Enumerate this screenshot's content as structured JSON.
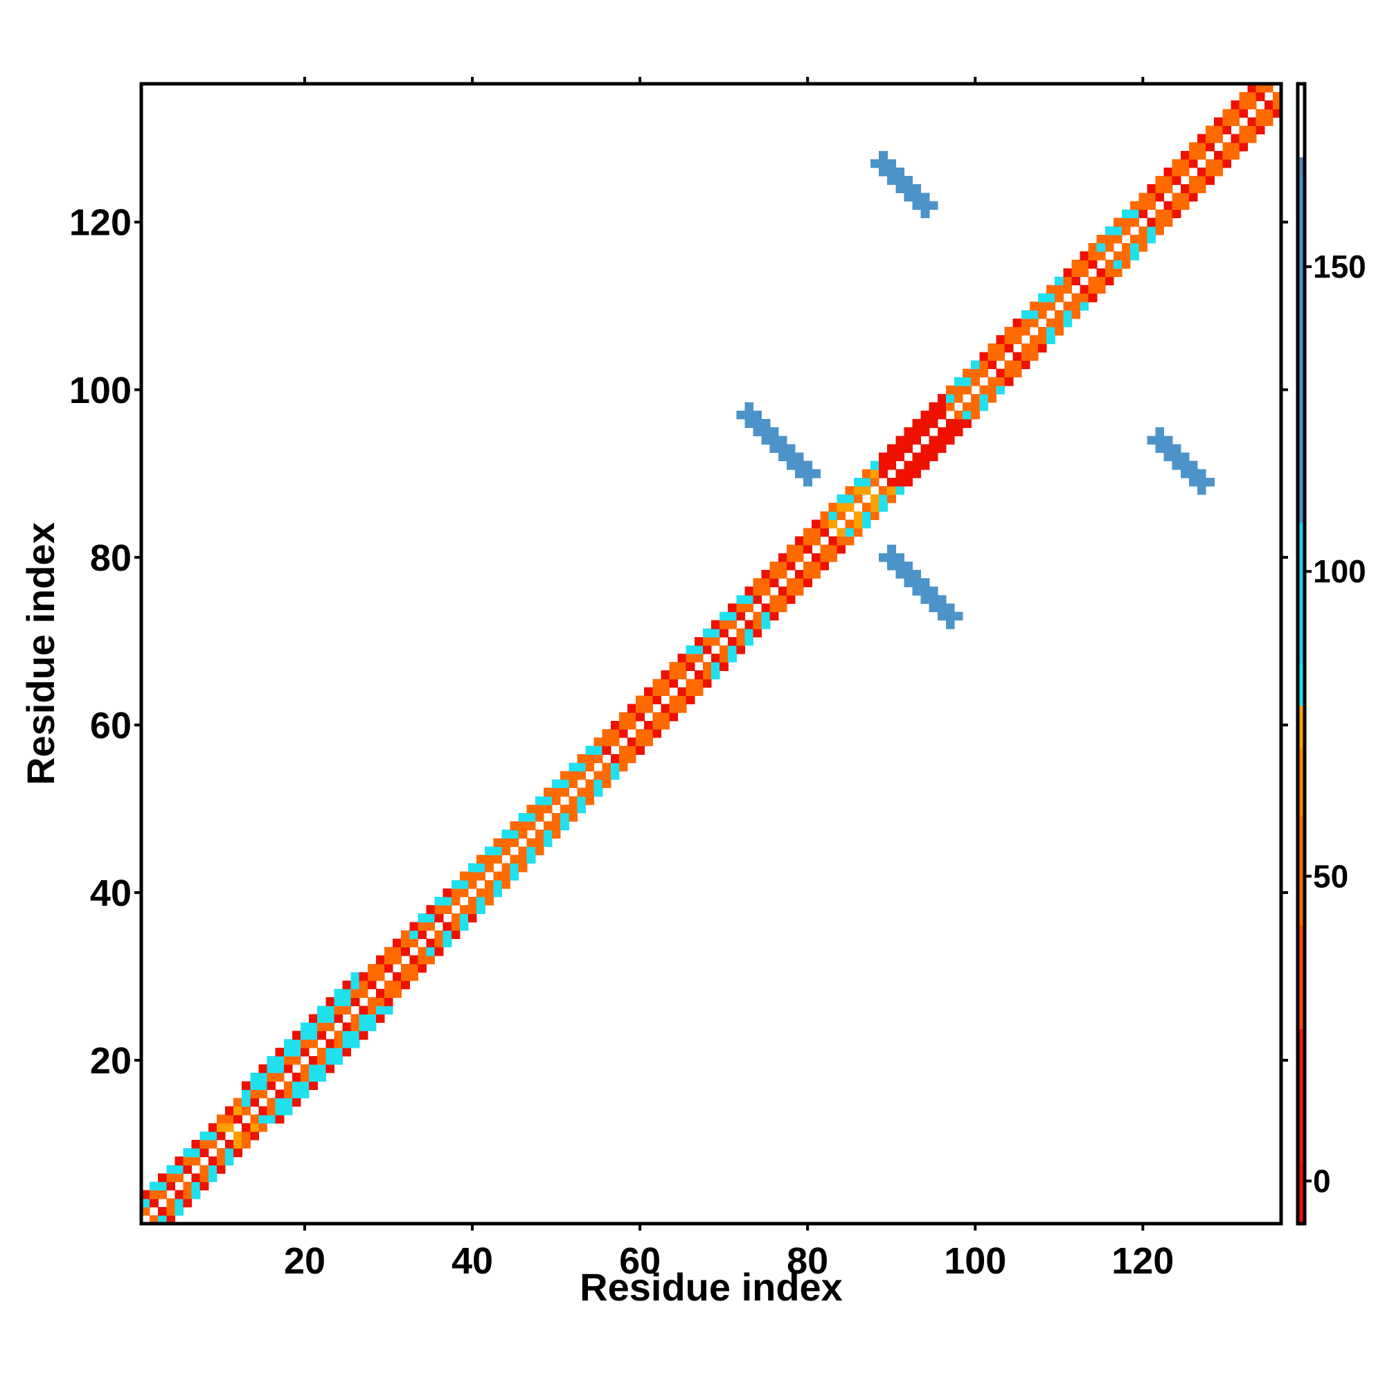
{
  "chart_data": {
    "type": "heatmap",
    "title": "",
    "xlabel": "Residue index",
    "ylabel": "Residue index",
    "xlim": [
      1,
      136
    ],
    "ylim": [
      1,
      136
    ],
    "x_ticks": [
      20,
      40,
      60,
      80,
      100,
      120
    ],
    "y_ticks": [
      20,
      40,
      60,
      80,
      100,
      120
    ],
    "grid": false,
    "colorbar": {
      "range": [
        -7,
        180
      ],
      "ticks": [
        0,
        50,
        100,
        150
      ],
      "stops": [
        {
          "from": -7,
          "to": 3,
          "color": "#ee1100"
        },
        {
          "from": 3,
          "to": 25,
          "color": "#f01d00"
        },
        {
          "from": 25,
          "to": 42,
          "color": "#fe4a04"
        },
        {
          "from": 42,
          "to": 60,
          "color": "#ff6a00"
        },
        {
          "from": 60,
          "to": 71,
          "color": "#ff8800"
        },
        {
          "from": 71,
          "to": 78,
          "color": "#ffa000"
        },
        {
          "from": 78,
          "to": 85,
          "color": "#20e0ee"
        },
        {
          "from": 85,
          "to": 108,
          "color": "#20ccf0"
        },
        {
          "from": 108,
          "to": 165,
          "color": "#4b93c8"
        },
        {
          "from": 165,
          "to": 168,
          "color": "#5a84bd"
        },
        {
          "from": 168,
          "to": 180,
          "color": "#ffffff"
        }
      ]
    },
    "cell_colors": {
      "red": "#ee1100",
      "orange": "#ff6a00",
      "amber": "#ffa000",
      "cyan": "#20e0ee",
      "steel": "#4b93c8"
    },
    "diagonal_band": {
      "residue_range": [
        1,
        136
      ],
      "half_width": 3,
      "segments": [
        {
          "from": 1,
          "to": 10,
          "pattern": "red-orange-cyan"
        },
        {
          "from": 10,
          "to": 13,
          "pattern": "red-amber"
        },
        {
          "from": 13,
          "to": 27,
          "pattern": "cyan-rich",
          "half_width": 4
        },
        {
          "from": 27,
          "to": 33,
          "pattern": "red-orange"
        },
        {
          "from": 33,
          "to": 38,
          "pattern": "orange-cyan"
        },
        {
          "from": 38,
          "to": 56,
          "pattern": "orange-cyan-checker"
        },
        {
          "from": 56,
          "to": 66,
          "pattern": "red-orange"
        },
        {
          "from": 66,
          "to": 74,
          "pattern": "orange-cyan"
        },
        {
          "from": 74,
          "to": 83,
          "pattern": "red-orange"
        },
        {
          "from": 83,
          "to": 89,
          "pattern": "cyan-amber"
        },
        {
          "from": 89,
          "to": 97,
          "pattern": "red"
        },
        {
          "from": 97,
          "to": 101,
          "pattern": "cyan-orange"
        },
        {
          "from": 101,
          "to": 106,
          "pattern": "red-orange"
        },
        {
          "from": 106,
          "to": 111,
          "pattern": "cyan-orange"
        },
        {
          "from": 111,
          "to": 115,
          "pattern": "red-orange"
        },
        {
          "from": 115,
          "to": 120,
          "pattern": "cyan-orange"
        },
        {
          "from": 120,
          "to": 136,
          "pattern": "red-orange"
        }
      ]
    },
    "off_diagonal_contacts": [
      {
        "color": "steel",
        "x_range": [
          73,
          80
        ],
        "y_range": [
          90,
          97
        ],
        "orientation": "antiparallel"
      },
      {
        "color": "steel",
        "x_range": [
          90,
          97
        ],
        "y_range": [
          73,
          80
        ],
        "orientation": "antiparallel"
      },
      {
        "color": "steel",
        "x_range": [
          89,
          94
        ],
        "y_range": [
          122,
          127
        ],
        "orientation": "antiparallel"
      },
      {
        "color": "steel",
        "x_range": [
          122,
          127
        ],
        "y_range": [
          89,
          94
        ],
        "orientation": "antiparallel"
      }
    ]
  }
}
